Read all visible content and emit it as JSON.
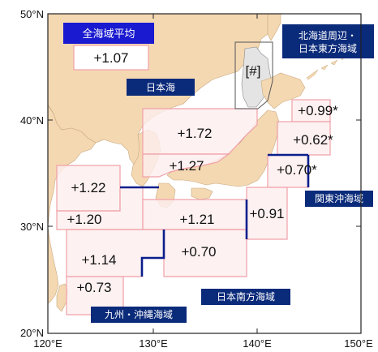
{
  "axes": {
    "lon_ticks": [
      "120°E",
      "130°E",
      "140°E",
      "150°E"
    ],
    "lat_ticks": [
      "50°N",
      "40°N",
      "30°N",
      "20°N"
    ]
  },
  "colors": {
    "sea": "#ffffff",
    "land": "#f4d8b2",
    "region_fill": "#fdeeee",
    "region_border": "#f0a0a8",
    "boundary": "#0a1e8c",
    "label_bg": "#0a2a7a",
    "label_bg_bright": "#1a1ad0"
  },
  "overall": {
    "label": "全海域平均",
    "value": "+1.07"
  },
  "region_labels": {
    "japan_sea": "日本海",
    "hokkaido_line1": "北海道周辺・",
    "hokkaido_line2": "日本東方海域",
    "kanto": "関東沖海域",
    "south": "日本南方海域",
    "kyushu": "九州・沖縄海域"
  },
  "inset_marker": "[#]",
  "regions": [
    {
      "id": "ne-north",
      "value": "+0.99*"
    },
    {
      "id": "ne-mid",
      "value": "+0.62*"
    },
    {
      "id": "ne-south",
      "value": "+0.70*"
    },
    {
      "id": "japan-sea-north",
      "value": "+1.72"
    },
    {
      "id": "japan-sea-south",
      "value": "+1.27"
    },
    {
      "id": "yellow-sea",
      "value": "+1.22"
    },
    {
      "id": "east-china-sea-north",
      "value": "+1.20"
    },
    {
      "id": "south-shikoku",
      "value": "+1.21"
    },
    {
      "id": "kanto-offshore",
      "value": "+0.91"
    },
    {
      "id": "east-china-sea-south",
      "value": "+1.14"
    },
    {
      "id": "south-japan",
      "value": "+0.70"
    },
    {
      "id": "okinawa",
      "value": "+0.73"
    }
  ]
}
